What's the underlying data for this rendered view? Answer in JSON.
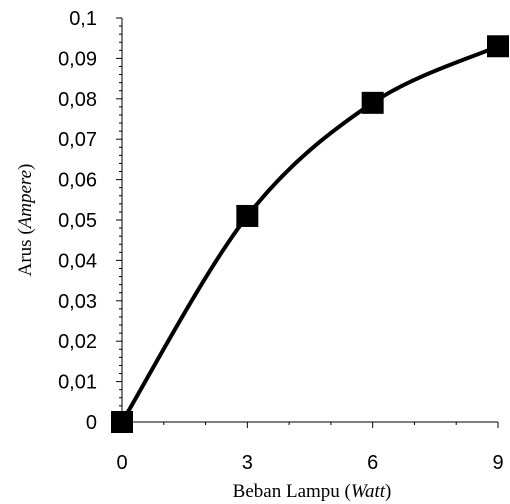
{
  "chart_data": {
    "type": "line",
    "title": "",
    "x": [
      0,
      3,
      6,
      9
    ],
    "series": [
      {
        "values": [
          0,
          0.051,
          0.079,
          0.093
        ],
        "color": "#000000",
        "marker": "square",
        "smooth": true
      }
    ],
    "xlim": [
      0,
      9
    ],
    "ylim": [
      0,
      0.1
    ],
    "x_ticks": [
      0,
      3,
      6,
      9
    ],
    "y_ticks": [
      0,
      0.01,
      0.02,
      0.03,
      0.04,
      0.05,
      0.06,
      0.07,
      0.08,
      0.09,
      0.1
    ],
    "x_tick_labels": [
      "0",
      "3",
      "6",
      "9"
    ],
    "y_tick_labels": [
      "0",
      "0,01",
      "0,02",
      "0,03",
      "0,04",
      "0,05",
      "0,06",
      "0,07",
      "0,08",
      "0,09",
      "0,1"
    ],
    "xlabel": {
      "plain": "Beban Lampu (",
      "italic": "Watt",
      "suffix": ")"
    },
    "ylabel": {
      "plain": "Arus (",
      "italic": "Ampere",
      "suffix": ")"
    },
    "grid": false,
    "legend": "none"
  }
}
